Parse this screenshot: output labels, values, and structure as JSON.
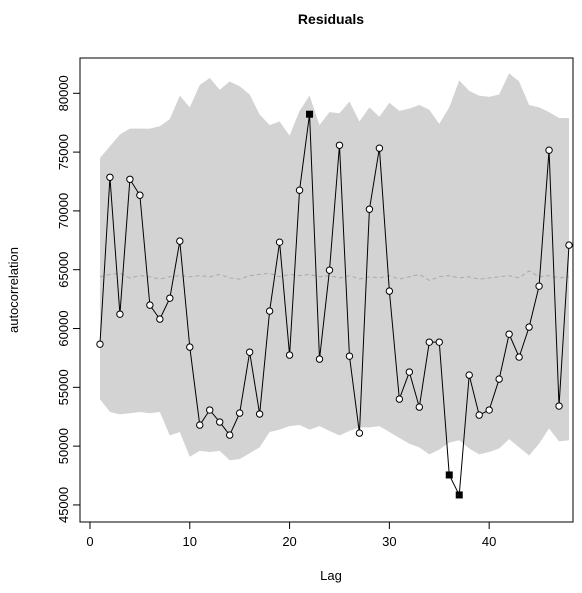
{
  "chart_data": {
    "type": "line",
    "title": "Residuals",
    "xlabel": "Lag",
    "ylabel": "autocorrelation",
    "x": [
      1,
      2,
      3,
      4,
      5,
      6,
      7,
      8,
      9,
      10,
      11,
      12,
      13,
      14,
      15,
      16,
      17,
      18,
      19,
      20,
      21,
      22,
      23,
      24,
      25,
      26,
      27,
      28,
      29,
      30,
      31,
      32,
      33,
      34,
      35,
      36,
      37,
      38,
      39,
      40,
      41,
      42,
      43,
      44,
      45,
      46,
      47,
      48
    ],
    "values": [
      58670,
      72860,
      61220,
      72690,
      71330,
      61990,
      60800,
      62580,
      67430,
      58420,
      51790,
      53070,
      52050,
      50940,
      52810,
      57990,
      52730,
      61480,
      67340,
      57740,
      71760,
      78220,
      57400,
      64960,
      75580,
      57650,
      51110,
      70140,
      75330,
      63180,
      54000,
      56300,
      53320,
      58840,
      58840,
      47550,
      45850,
      56040,
      52640,
      53070,
      55700,
      59520,
      57570,
      60120,
      63600,
      75160,
      53410,
      67090
    ],
    "band_upper": [
      74500,
      75500,
      76500,
      77000,
      77000,
      77000,
      77200,
      77800,
      79800,
      78800,
      80700,
      81300,
      80300,
      81000,
      80600,
      79900,
      78200,
      77300,
      77600,
      76400,
      78500,
      79800,
      77300,
      78400,
      78300,
      79300,
      77600,
      78800,
      78000,
      79200,
      78500,
      78700,
      79000,
      78600,
      77400,
      78800,
      81100,
      80200,
      79800,
      79700,
      79900,
      81700,
      81000,
      79000,
      78800,
      78400,
      77900,
      77900
    ],
    "band_lower": [
      54000,
      52900,
      52700,
      52800,
      52900,
      52800,
      52900,
      50900,
      51200,
      49100,
      49600,
      49500,
      49600,
      48800,
      48900,
      49400,
      49900,
      51200,
      51400,
      51700,
      51800,
      51400,
      51700,
      51300,
      50900,
      51300,
      51600,
      51600,
      51700,
      51200,
      50700,
      50200,
      49900,
      49300,
      49700,
      50300,
      50500,
      49800,
      49300,
      49500,
      49800,
      50600,
      49900,
      49200,
      50200,
      51500,
      50400,
      50500
    ],
    "band_mean": [
      64400,
      64600,
      64700,
      64300,
      64500,
      64400,
      64200,
      64400,
      64500,
      64400,
      64500,
      64400,
      64600,
      64300,
      64200,
      64500,
      64600,
      64700,
      64400,
      64600,
      64500,
      64600,
      64400,
      64500,
      64300,
      64500,
      64200,
      64400,
      64300,
      64500,
      64200,
      64400,
      64600,
      64100,
      64400,
      64500,
      64300,
      64400,
      64200,
      64300,
      64400,
      64500,
      64300,
      64900,
      64400,
      64500,
      64300,
      64400
    ],
    "highlight_x": [
      22,
      36,
      37
    ],
    "color": "#000000",
    "band_color": "#d3d3d3",
    "mean_color": "#a9a9a9",
    "xlim": [
      -1,
      48.4
    ],
    "xticks": [
      0,
      10,
      20,
      30,
      40
    ],
    "ylim": [
      43550,
      83000
    ],
    "yticks": [
      45000,
      50000,
      55000,
      60000,
      65000,
      70000,
      75000,
      80000
    ]
  }
}
